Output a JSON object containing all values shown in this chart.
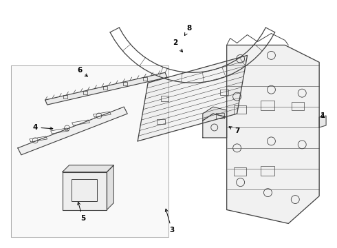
{
  "background_color": "#ffffff",
  "line_color": "#404040",
  "fig_width": 4.9,
  "fig_height": 3.6,
  "dpi": 100,
  "label_fontsize": 7.5
}
